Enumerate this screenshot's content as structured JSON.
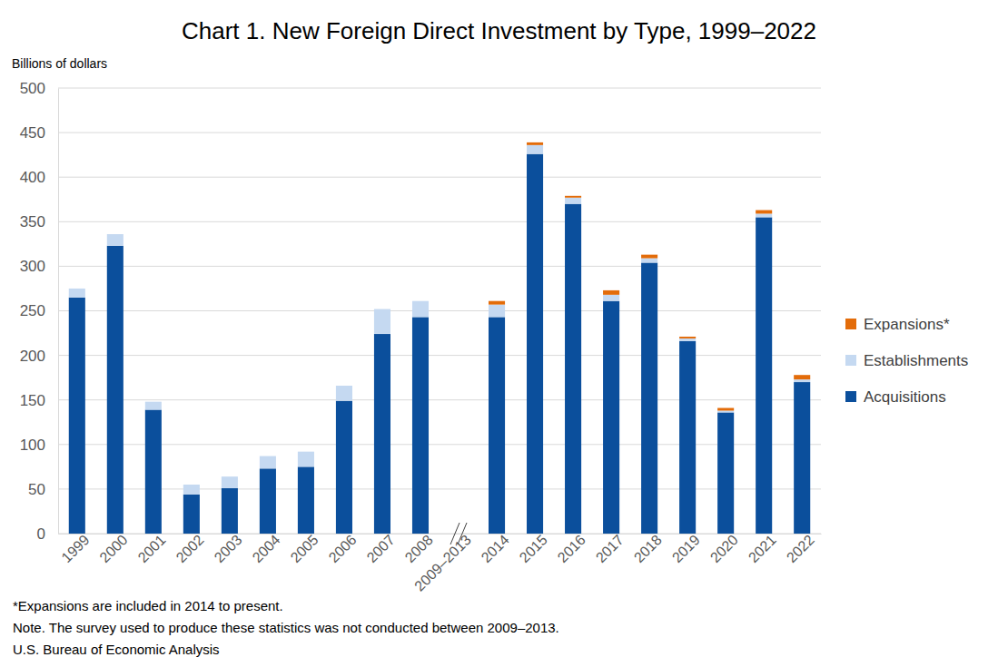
{
  "chart_data": {
    "type": "bar",
    "stacked": true,
    "title": "Chart 1. New Foreign Direct Investment by Type, 1999–2022",
    "y_label": "Billions of dollars",
    "categories": [
      "1999",
      "2000",
      "2001",
      "2002",
      "2003",
      "2004",
      "2005",
      "2006",
      "2007",
      "2008",
      "2009–2013",
      "2014",
      "2015",
      "2016",
      "2017",
      "2018",
      "2019",
      "2020",
      "2021",
      "2022"
    ],
    "series": [
      {
        "name": "Acquisitions",
        "color": "#0b4f9c",
        "values": [
          265,
          323,
          139,
          44,
          51,
          73,
          75,
          149,
          224,
          243,
          null,
          243,
          426,
          370,
          261,
          304,
          216,
          136,
          355,
          170
        ]
      },
      {
        "name": "Establishments",
        "color": "#c5d9f1",
        "values": [
          10,
          13,
          9,
          11,
          13,
          14,
          17,
          17,
          28,
          18,
          null,
          14,
          10,
          7,
          7,
          5,
          3,
          2,
          4,
          3
        ]
      },
      {
        "name": "Expansions*",
        "color": "#e36c0a",
        "values": [
          null,
          null,
          null,
          null,
          null,
          null,
          null,
          null,
          null,
          null,
          null,
          4,
          3,
          2,
          5,
          4,
          2,
          3,
          4,
          5
        ]
      }
    ],
    "ylim": [
      0,
      500
    ],
    "yticks": [
      0,
      50,
      100,
      150,
      200,
      250,
      300,
      350,
      400,
      450,
      500
    ],
    "grid": true,
    "legend": "right",
    "annotations": [
      "*Expansions are included in 2014 to present.",
      "Note. The survey used to produce these statistics was not conducted between 2009–2013.",
      "U.S. Bureau of Economic Analysis"
    ]
  }
}
